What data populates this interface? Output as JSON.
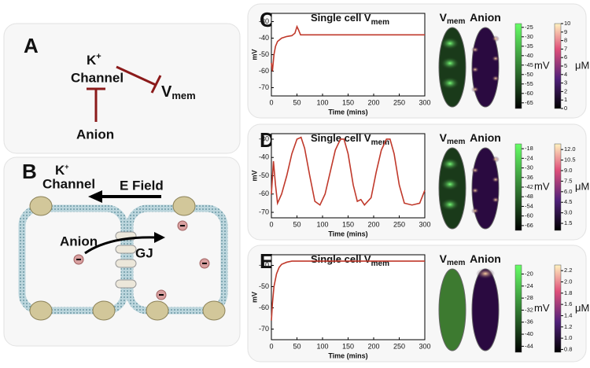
{
  "diagram_a": {
    "panel": "A",
    "k": "K",
    "k_sup": "+",
    "channel": "Channel",
    "v": "V",
    "v_sub": "mem",
    "anion": "Anion"
  },
  "diagram_b": {
    "panel": "B",
    "k": "K",
    "k_sup": "+",
    "channel": "Channel",
    "field": "E Field",
    "anion": "Anion",
    "gj": "GJ"
  },
  "chart_data": [
    {
      "type": "line",
      "panel": "C",
      "title": "Single cell V",
      "title_sub": "mem",
      "y_label": "mV",
      "x_label": "Time (mins)",
      "x": [
        0,
        2,
        5,
        8,
        12,
        20,
        30,
        40,
        46,
        50,
        53,
        57,
        65,
        80,
        100,
        150,
        200,
        250,
        300
      ],
      "series": [
        {
          "color": "#c0392b",
          "values": [
            -55,
            -60,
            -50,
            -45,
            -42,
            -40,
            -39,
            -38.5,
            -37,
            -33,
            -35,
            -38,
            -38,
            -38,
            -38,
            -38,
            -38,
            -38,
            -38
          ]
        }
      ],
      "xlim": [
        0,
        300
      ],
      "xticks": [
        0,
        50,
        100,
        150,
        200,
        250,
        300
      ],
      "ylim": [
        -75,
        -25
      ],
      "yticks": [
        -30,
        -40,
        -50,
        -60,
        -70
      ],
      "colorbars": [
        {
          "label": "V",
          "label_sub": "mem",
          "unit": "mV",
          "lim": [
            -68,
            -23
          ],
          "ticks": [
            -25,
            -30,
            -35,
            -40,
            -45,
            -50,
            -55,
            -60,
            -65
          ]
        },
        {
          "label": "Anion",
          "unit": "μM",
          "lim": [
            0,
            10
          ],
          "ticks": [
            0,
            1,
            2,
            3,
            4,
            5,
            6,
            7,
            8,
            9,
            10
          ]
        }
      ]
    },
    {
      "type": "line",
      "panel": "D",
      "title": "Single cell V",
      "title_sub": "mem",
      "y_label": "mV",
      "x_label": "Time (mins)",
      "x": [
        0,
        4,
        8,
        12,
        20,
        30,
        40,
        50,
        58,
        65,
        75,
        85,
        95,
        105,
        115,
        125,
        135,
        142,
        150,
        160,
        168,
        175,
        182,
        195,
        205,
        215,
        225,
        232,
        240,
        250,
        260,
        275,
        290,
        300
      ],
      "series": [
        {
          "color": "#c0392b",
          "values": [
            -60,
            -42,
            -55,
            -65,
            -60,
            -50,
            -38,
            -30,
            -29,
            -35,
            -50,
            -64,
            -66,
            -60,
            -48,
            -36,
            -30,
            -30,
            -38,
            -55,
            -64,
            -63,
            -66,
            -62,
            -48,
            -36,
            -30,
            -30,
            -38,
            -55,
            -65,
            -66,
            -65,
            -58
          ]
        }
      ],
      "xlim": [
        0,
        300
      ],
      "xticks": [
        0,
        50,
        100,
        150,
        200,
        250,
        300
      ],
      "ylim": [
        -73,
        -27
      ],
      "yticks": [
        -30,
        -40,
        -50,
        -60,
        -70
      ],
      "colorbars": [
        {
          "label": "V",
          "label_sub": "mem",
          "unit": "mV",
          "lim": [
            -69,
            -15
          ],
          "ticks": [
            -18,
            -24,
            -30,
            -36,
            -42,
            -48,
            -54,
            -60,
            -66
          ]
        },
        {
          "label": "Anion",
          "unit": "μM",
          "lim": [
            0.5,
            12.8
          ],
          "ticks": [
            1.5,
            {
              "value": 3,
              "label": "3.0"
            },
            4.5,
            {
              "value": 6,
              "label": "6.0"
            },
            7.5,
            {
              "value": 9,
              "label": "9.0"
            },
            10.5,
            {
              "value": 12,
              "label": "12.0"
            }
          ]
        }
      ]
    },
    {
      "type": "line",
      "panel": "E",
      "title": "Single cell V",
      "title_sub": "mem",
      "y_label": "mV",
      "x_label": "Time (mins)",
      "x": [
        0,
        2,
        5,
        10,
        15,
        20,
        30,
        40,
        50,
        75,
        100,
        150,
        200,
        250,
        300
      ],
      "series": [
        {
          "color": "#c0392b",
          "values": [
            -66,
            -58,
            -50,
            -44,
            -41,
            -39.5,
            -38.5,
            -38,
            -38,
            -38,
            -38,
            -38,
            -38,
            -38,
            -38
          ]
        }
      ],
      "xlim": [
        0,
        300
      ],
      "xticks": [
        0,
        50,
        100,
        150,
        200,
        250,
        300
      ],
      "ylim": [
        -75,
        -35
      ],
      "yticks": [
        -40,
        -50,
        -60,
        -70
      ],
      "colorbars": [
        {
          "label": "V",
          "label_sub": "mem",
          "unit": "mV",
          "lim": [
            -46,
            -17
          ],
          "ticks": [
            -20,
            -24,
            -28,
            -32,
            -36,
            -40,
            -44
          ]
        },
        {
          "label": "Anion",
          "unit": "μM",
          "lim": [
            0.75,
            2.3
          ],
          "ticks": [
            0.8,
            {
              "value": 1,
              "label": "1.0"
            },
            1.2,
            1.4,
            1.6,
            1.8,
            {
              "value": 2,
              "label": "2.0"
            },
            2.2
          ]
        }
      ]
    }
  ]
}
